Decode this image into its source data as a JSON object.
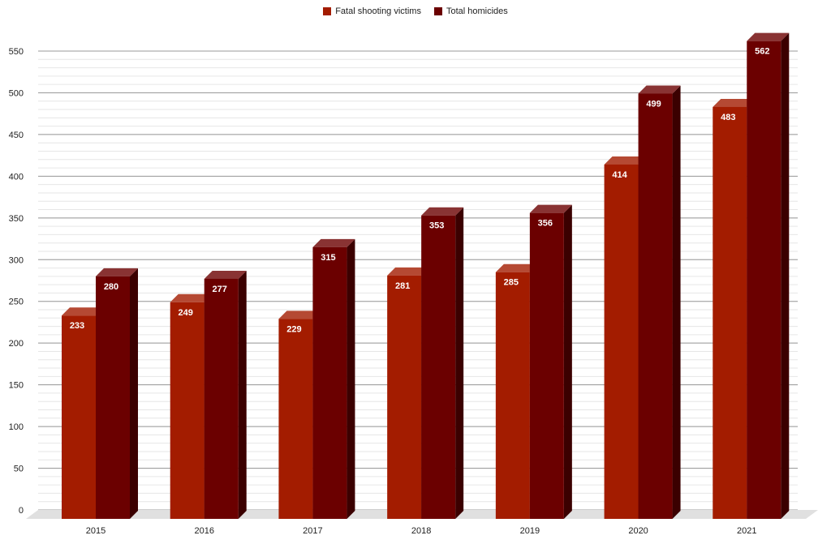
{
  "chart_data": {
    "type": "bar",
    "title": "",
    "xlabel": "",
    "ylabel": "",
    "categories": [
      "2015",
      "2016",
      "2017",
      "2018",
      "2019",
      "2020",
      "2021"
    ],
    "series": [
      {
        "name": "Fatal shooting victims",
        "color": "#a31c00",
        "values": [
          233,
          249,
          229,
          281,
          285,
          414,
          483
        ]
      },
      {
        "name": "Total homicides",
        "color": "#6b0000",
        "values": [
          280,
          277,
          315,
          353,
          356,
          499,
          562
        ]
      }
    ],
    "ylim": [
      0,
      550
    ],
    "yticks": [
      0,
      50,
      100,
      150,
      200,
      250,
      300,
      350,
      400,
      450,
      500,
      550
    ],
    "grid": true,
    "legend_position": "top-center",
    "style": "3d-bar"
  }
}
